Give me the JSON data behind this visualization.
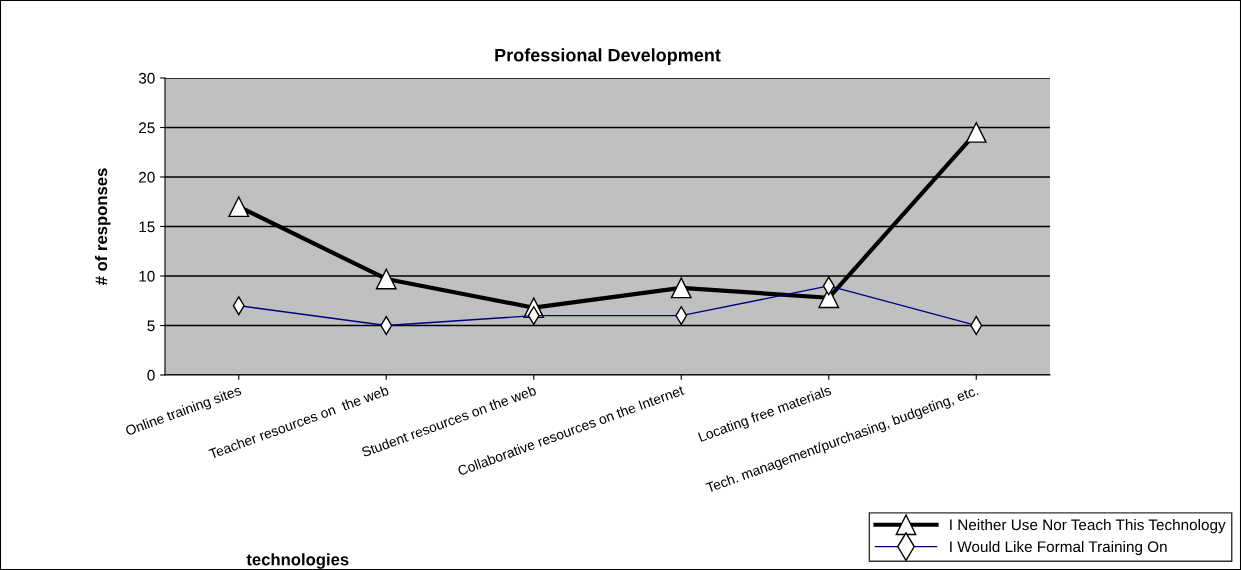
{
  "chart_data": {
    "type": "line",
    "title": "Professional Development",
    "xlabel": "technologies",
    "ylabel": "# of responses",
    "categories": [
      "Online training sites",
      "Teacher resources on  the web",
      "Student resources on the web",
      "Collaborative resources on the Internet",
      "Locating free materials",
      "Tech. management/purchasing, budgeting, etc."
    ],
    "series": [
      {
        "name": "I Neither Use Nor Teach This Technology",
        "color": "#000000",
        "marker": "triangle",
        "values": [
          17,
          9.7,
          6.8,
          8.8,
          7.8,
          24.5
        ]
      },
      {
        "name": "I Would Like Formal Training On",
        "color": "#000080",
        "marker": "diamond",
        "values": [
          7,
          5,
          6,
          6,
          9,
          5
        ]
      }
    ],
    "ylim": [
      0,
      30
    ],
    "yticks": [
      0,
      5,
      10,
      15,
      20,
      25,
      30
    ],
    "grid": "y",
    "legend": "bottom right"
  }
}
